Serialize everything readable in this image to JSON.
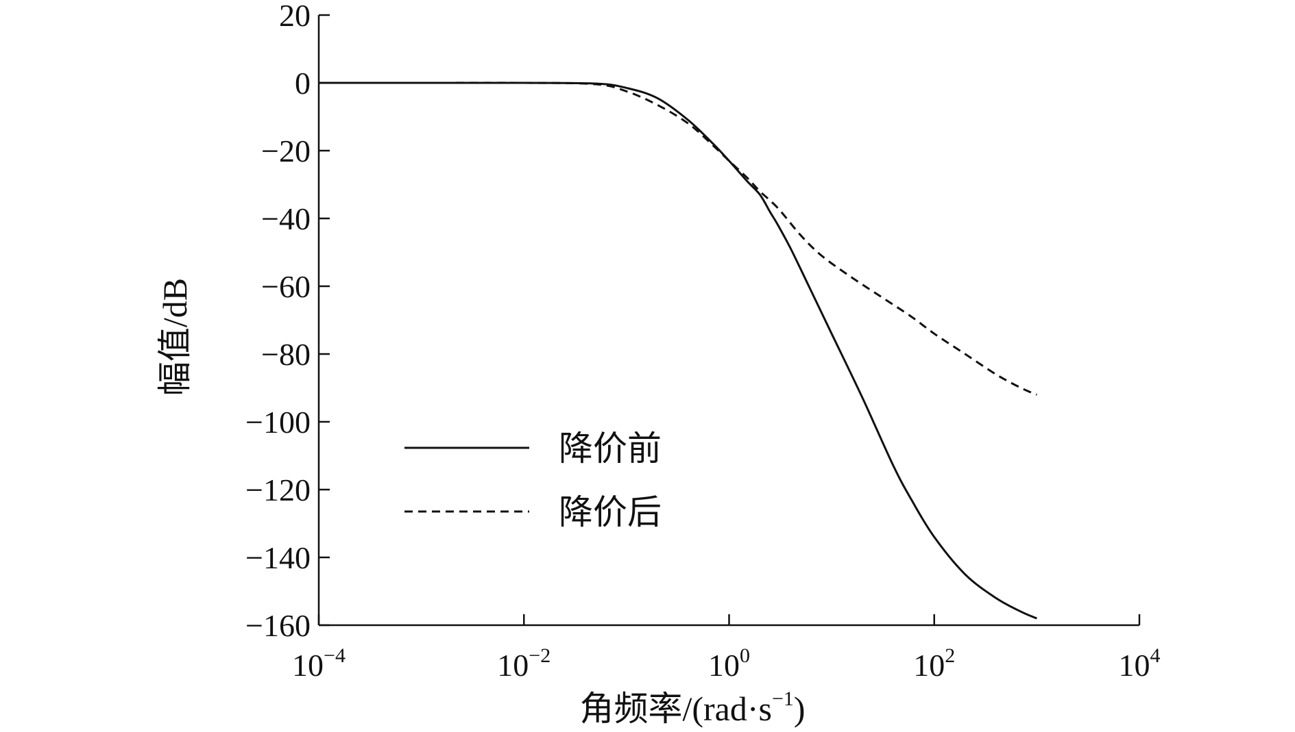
{
  "chart_data": {
    "type": "line",
    "title": "",
    "xlabel": "角频率/(rad·s",
    "xlabel_sup": "−1",
    "xlabel_end": ")",
    "ylabel": "幅值/dB",
    "xscale": "log",
    "xlim": [
      0.0001,
      10000
    ],
    "ylim": [
      -160,
      20
    ],
    "grid": false,
    "legend_position": "lower-left",
    "x_ticks": [
      {
        "value": 0.0001,
        "base": "10",
        "exp": "−4"
      },
      {
        "value": 0.01,
        "base": "10",
        "exp": "−2"
      },
      {
        "value": 1,
        "base": "10",
        "exp": "0"
      },
      {
        "value": 100,
        "base": "10",
        "exp": "2"
      },
      {
        "value": 10000,
        "base": "10",
        "exp": "4"
      }
    ],
    "y_ticks": [
      {
        "value": 20,
        "label": "20"
      },
      {
        "value": 0,
        "label": "0"
      },
      {
        "value": -20,
        "label": "−20"
      },
      {
        "value": -40,
        "label": "−40"
      },
      {
        "value": -60,
        "label": "−60"
      },
      {
        "value": -80,
        "label": "−80"
      },
      {
        "value": -100,
        "label": "−100"
      },
      {
        "value": -120,
        "label": "−120"
      },
      {
        "value": -140,
        "label": "−140"
      },
      {
        "value": -160,
        "label": "−160"
      }
    ],
    "series": [
      {
        "name": "降价前",
        "style": "solid",
        "color": "#111111",
        "points": [
          [
            0.0001,
            0
          ],
          [
            0.001,
            0
          ],
          [
            0.01,
            0
          ],
          [
            0.05,
            -0.2
          ],
          [
            0.1,
            -1.5
          ],
          [
            0.2,
            -4.5
          ],
          [
            0.4,
            -11
          ],
          [
            0.7,
            -18
          ],
          [
            1,
            -23
          ],
          [
            1.5,
            -29
          ],
          [
            2,
            -33
          ],
          [
            2.5,
            -38
          ],
          [
            3,
            -42
          ],
          [
            4,
            -49
          ],
          [
            6,
            -60
          ],
          [
            10,
            -74
          ],
          [
            20,
            -93
          ],
          [
            40,
            -113
          ],
          [
            60,
            -123
          ],
          [
            100,
            -134
          ],
          [
            200,
            -145
          ],
          [
            400,
            -152
          ],
          [
            700,
            -156
          ],
          [
            1000,
            -158
          ]
        ]
      },
      {
        "name": "降价后",
        "style": "dashed",
        "color": "#111111",
        "points": [
          [
            0.0001,
            0
          ],
          [
            0.001,
            0
          ],
          [
            0.01,
            0
          ],
          [
            0.05,
            -0.4
          ],
          [
            0.1,
            -2.5
          ],
          [
            0.2,
            -6.5
          ],
          [
            0.4,
            -12
          ],
          [
            0.7,
            -18.5
          ],
          [
            1,
            -23
          ],
          [
            1.5,
            -28
          ],
          [
            2,
            -32
          ],
          [
            3,
            -37
          ],
          [
            5,
            -45
          ],
          [
            8,
            -51
          ],
          [
            15,
            -57
          ],
          [
            30,
            -63
          ],
          [
            60,
            -69
          ],
          [
            100,
            -74
          ],
          [
            200,
            -80
          ],
          [
            400,
            -86
          ],
          [
            700,
            -90
          ],
          [
            1000,
            -92
          ]
        ]
      }
    ]
  }
}
